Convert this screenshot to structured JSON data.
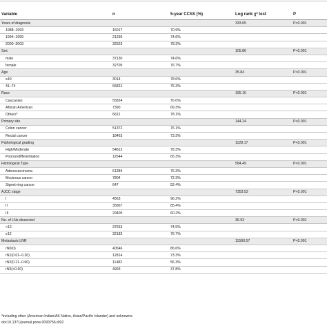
{
  "headers": {
    "variable": "Variable",
    "n": "n",
    "ccss": "5-year CCSS (%)",
    "logrank": "Log rank χ² test",
    "p": "P"
  },
  "rows": [
    {
      "type": "group",
      "variable": "Years of diagnosis",
      "n": "",
      "ccss": "",
      "chi": "333.65",
      "p": "P<0.001"
    },
    {
      "type": "sub",
      "variable": "1988–1993",
      "n": "16017",
      "ccss": "70.9%",
      "chi": "",
      "p": ""
    },
    {
      "type": "sub",
      "variable": "1994–1999",
      "n": "21295",
      "ccss": "74.6%",
      "chi": "",
      "p": ""
    },
    {
      "type": "sub",
      "variable": "2000–2003",
      "n": "32523",
      "ccss": "78.3%",
      "chi": "",
      "p": ""
    },
    {
      "type": "group",
      "variable": "Sex",
      "n": "",
      "ccss": "",
      "chi": "105.86",
      "p": "P<0.001"
    },
    {
      "type": "sub",
      "variable": "male",
      "n": "37130",
      "ccss": "74.6%",
      "chi": "",
      "p": ""
    },
    {
      "type": "sub",
      "variable": "female",
      "n": "32705",
      "ccss": "76.7%",
      "chi": "",
      "p": ""
    },
    {
      "type": "group",
      "variable": "Age",
      "n": "",
      "ccss": "",
      "chi": "35.84",
      "p": "P<0.001"
    },
    {
      "type": "sub",
      "variable": "≤40",
      "n": "3014",
      "ccss": "78.6%",
      "chi": "",
      "p": ""
    },
    {
      "type": "sub",
      "variable": "41–74",
      "n": "66821",
      "ccss": "75.3%",
      "chi": "",
      "p": ""
    },
    {
      "type": "group",
      "variable": "Race",
      "n": "",
      "ccss": "",
      "chi": "195.16",
      "p": "P<0.001"
    },
    {
      "type": "sub",
      "variable": "Caucasian",
      "n": "55824",
      "ccss": "76.0%",
      "chi": "",
      "p": ""
    },
    {
      "type": "sub",
      "variable": "African American",
      "n": "7390",
      "ccss": "69.3%",
      "chi": "",
      "p": ""
    },
    {
      "type": "sub",
      "variable": "Others*",
      "n": "6621",
      "ccss": "78.1%",
      "chi": "",
      "p": ""
    },
    {
      "type": "group",
      "variable": "Primary site",
      "n": "",
      "ccss": "",
      "chi": "144.24",
      "p": "P<0.001"
    },
    {
      "type": "sub",
      "variable": "Colon cancer",
      "n": "51372",
      "ccss": "76.1%",
      "chi": "",
      "p": ""
    },
    {
      "type": "sub",
      "variable": "Rectal cancer",
      "n": "18463",
      "ccss": "73.3%",
      "chi": "",
      "p": ""
    },
    {
      "type": "group",
      "variable": "Pathological grading",
      "n": "",
      "ccss": "",
      "chi": "1128.17",
      "p": "P<0.001"
    },
    {
      "type": "sub",
      "variable": "High/Moderate",
      "n": "54812",
      "ccss": "78.3%",
      "chi": "",
      "p": ""
    },
    {
      "type": "sub",
      "variable": "Poor/undifferentiation",
      "n": "12644",
      "ccss": "65.3%",
      "chi": "",
      "p": ""
    },
    {
      "type": "group",
      "variable": "Histological Type",
      "n": "",
      "ccss": "",
      "chi": "584.49",
      "p": "P<0.001"
    },
    {
      "type": "sub",
      "variable": "Adenocarcinoma",
      "n": "61384",
      "ccss": "76.3%",
      "chi": "",
      "p": ""
    },
    {
      "type": "sub",
      "variable": "Mucinous cancer",
      "n": "7804",
      "ccss": "72.3%",
      "chi": "",
      "p": ""
    },
    {
      "type": "sub",
      "variable": "Signet-ring cancer",
      "n": "647",
      "ccss": "52.4%",
      "chi": "",
      "p": ""
    },
    {
      "type": "group",
      "variable": "AJCC stage",
      "n": "",
      "ccss": "",
      "chi": "7353.52",
      "p": "P<0.001"
    },
    {
      "type": "sub",
      "variable": "I",
      "n": "4563",
      "ccss": "96.2%",
      "chi": "",
      "p": ""
    },
    {
      "type": "sub",
      "variable": "II",
      "n": "35867",
      "ccss": "85.4%",
      "chi": "",
      "p": ""
    },
    {
      "type": "sub",
      "variable": "III",
      "n": "29405",
      "ccss": "60.2%",
      "chi": "",
      "p": ""
    },
    {
      "type": "group",
      "variable": "No. of LNs dissected",
      "n": "",
      "ccss": "",
      "chi": "36.93",
      "p": "P<0.001"
    },
    {
      "type": "sub",
      "variable": "<12",
      "n": "37653",
      "ccss": "74.5%",
      "chi": "",
      "p": ""
    },
    {
      "type": "sub",
      "variable": "≥12",
      "n": "32182",
      "ccss": "76.7%",
      "chi": "",
      "p": ""
    },
    {
      "type": "group",
      "variable": "Metastasis LNR",
      "n": "",
      "ccss": "",
      "chi": "11590.57",
      "p": "P<0.001"
    },
    {
      "type": "sub",
      "variable": "rN0(0)",
      "n": "40546",
      "ccss": "86.6%",
      "chi": "",
      "p": ""
    },
    {
      "type": "sub",
      "variable": "rN1(0.01–0.20)",
      "n": "12814",
      "ccss": "73.3%",
      "chi": "",
      "p": ""
    },
    {
      "type": "sub",
      "variable": "rN2(0.21–0.60)",
      "n": "11482",
      "ccss": "56.3%",
      "chi": "",
      "p": ""
    },
    {
      "type": "sub",
      "variable": "rN3(>0.60)",
      "n": "4993",
      "ccss": "37.8%",
      "chi": "",
      "p": ""
    }
  ],
  "footnote": "*including other (American Indian/AK Native, Asian/Pacific Islander) and unknowns.",
  "doi": "doi:10.1371/journal.pone.0093756.t002"
}
